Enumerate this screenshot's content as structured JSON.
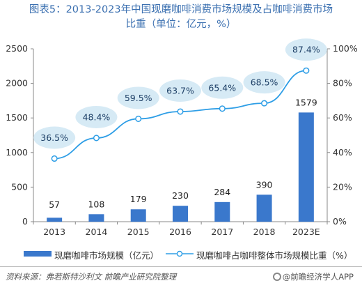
{
  "title_line1": "图表5：2013-2023年中国现磨咖啡消费市场规模及占咖啡消费市场",
  "title_line2": "比重（单位：亿元，%）",
  "chart_data": {
    "type": "bar+line",
    "categories": [
      "2013",
      "2014",
      "2015",
      "2016",
      "2017",
      "2018",
      "2023E"
    ],
    "series": [
      {
        "name": "现磨咖啡市场规模（亿元）",
        "type": "bar",
        "axis": "left",
        "values": [
          57,
          108,
          179,
          230,
          284,
          390,
          1579
        ]
      },
      {
        "name": "现磨咖啡占咖啡整体市场规模比重（%）",
        "type": "line",
        "axis": "right",
        "values": [
          36.5,
          48.4,
          59.5,
          63.7,
          65.4,
          68.5,
          87.4
        ]
      }
    ],
    "bar_labels": [
      "57",
      "108",
      "179",
      "230",
      "284",
      "390",
      "1579"
    ],
    "line_labels": [
      "36.5%",
      "48.4%",
      "59.5%",
      "63.7%",
      "65.4%",
      "68.5%",
      "87.4%"
    ],
    "y_left": {
      "min": 0,
      "max": 2500,
      "ticks": [
        0,
        500,
        1000,
        1500,
        2000,
        2500
      ]
    },
    "y_right": {
      "min": 0,
      "max": 100,
      "ticks": [
        "0%",
        "20%",
        "40%",
        "60%",
        "80%",
        "100%"
      ]
    },
    "legend_placement": "bottom",
    "colors": {
      "bar": "#3a78cc",
      "line": "#2e9ee6",
      "bubble": "#d6eaf5",
      "title": "#3a6fb0"
    }
  },
  "legend": {
    "bar_label": "现磨咖啡市场规模（亿元）",
    "line_label": "现磨咖啡占咖啡整体市场规模比重（%）"
  },
  "source": "资料来源：弗若斯特沙利文 前瞻产业研究院整理",
  "brand": "@前瞻经济学人APP"
}
